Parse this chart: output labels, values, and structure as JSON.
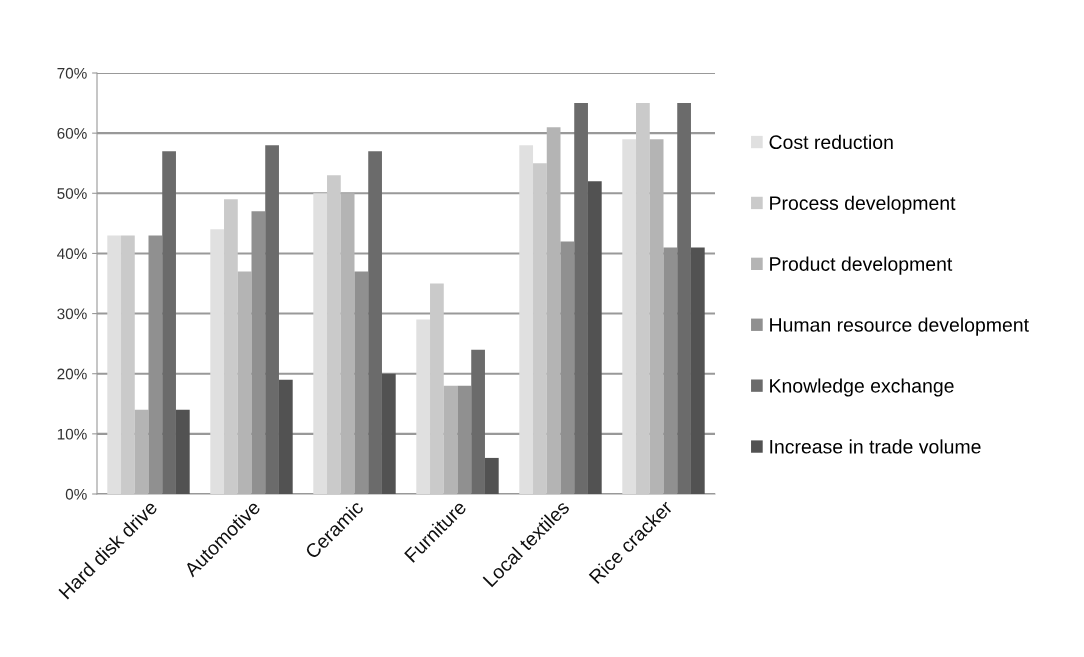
{
  "chart_data": {
    "type": "bar",
    "categories": [
      "Hard disk drive",
      "Automotive",
      "Ceramic",
      "Furniture",
      "Local textiles",
      "Rice cracker"
    ],
    "series": [
      {
        "name": "Cost reduction",
        "color": "#e0e0e0",
        "values": [
          43,
          44,
          50,
          29,
          58,
          59
        ]
      },
      {
        "name": "Process development",
        "color": "#cacaca",
        "values": [
          43,
          49,
          53,
          35,
          55,
          65
        ]
      },
      {
        "name": "Product development",
        "color": "#b4b4b4",
        "values": [
          14,
          37,
          50,
          18,
          61,
          59
        ]
      },
      {
        "name": "Human resource development",
        "color": "#909090",
        "values": [
          43,
          47,
          37,
          18,
          42,
          41
        ]
      },
      {
        "name": "Knowledge exchange",
        "color": "#6b6b6b",
        "values": [
          57,
          58,
          57,
          24,
          65,
          65
        ]
      },
      {
        "name": "Increase in trade volume",
        "color": "#525252",
        "values": [
          14,
          19,
          20,
          6,
          52,
          41
        ]
      }
    ],
    "ylim": [
      0,
      70
    ],
    "yticks": [
      {
        "value": 0,
        "label": "0%"
      },
      {
        "value": 10,
        "label": "10%"
      },
      {
        "value": 20,
        "label": "20%"
      },
      {
        "value": 30,
        "label": "30%"
      },
      {
        "value": 40,
        "label": "40%"
      },
      {
        "value": 50,
        "label": "50%"
      },
      {
        "value": 60,
        "label": "60%"
      },
      {
        "value": 70,
        "label": "70%"
      }
    ],
    "grid": "y",
    "legend": "right"
  }
}
